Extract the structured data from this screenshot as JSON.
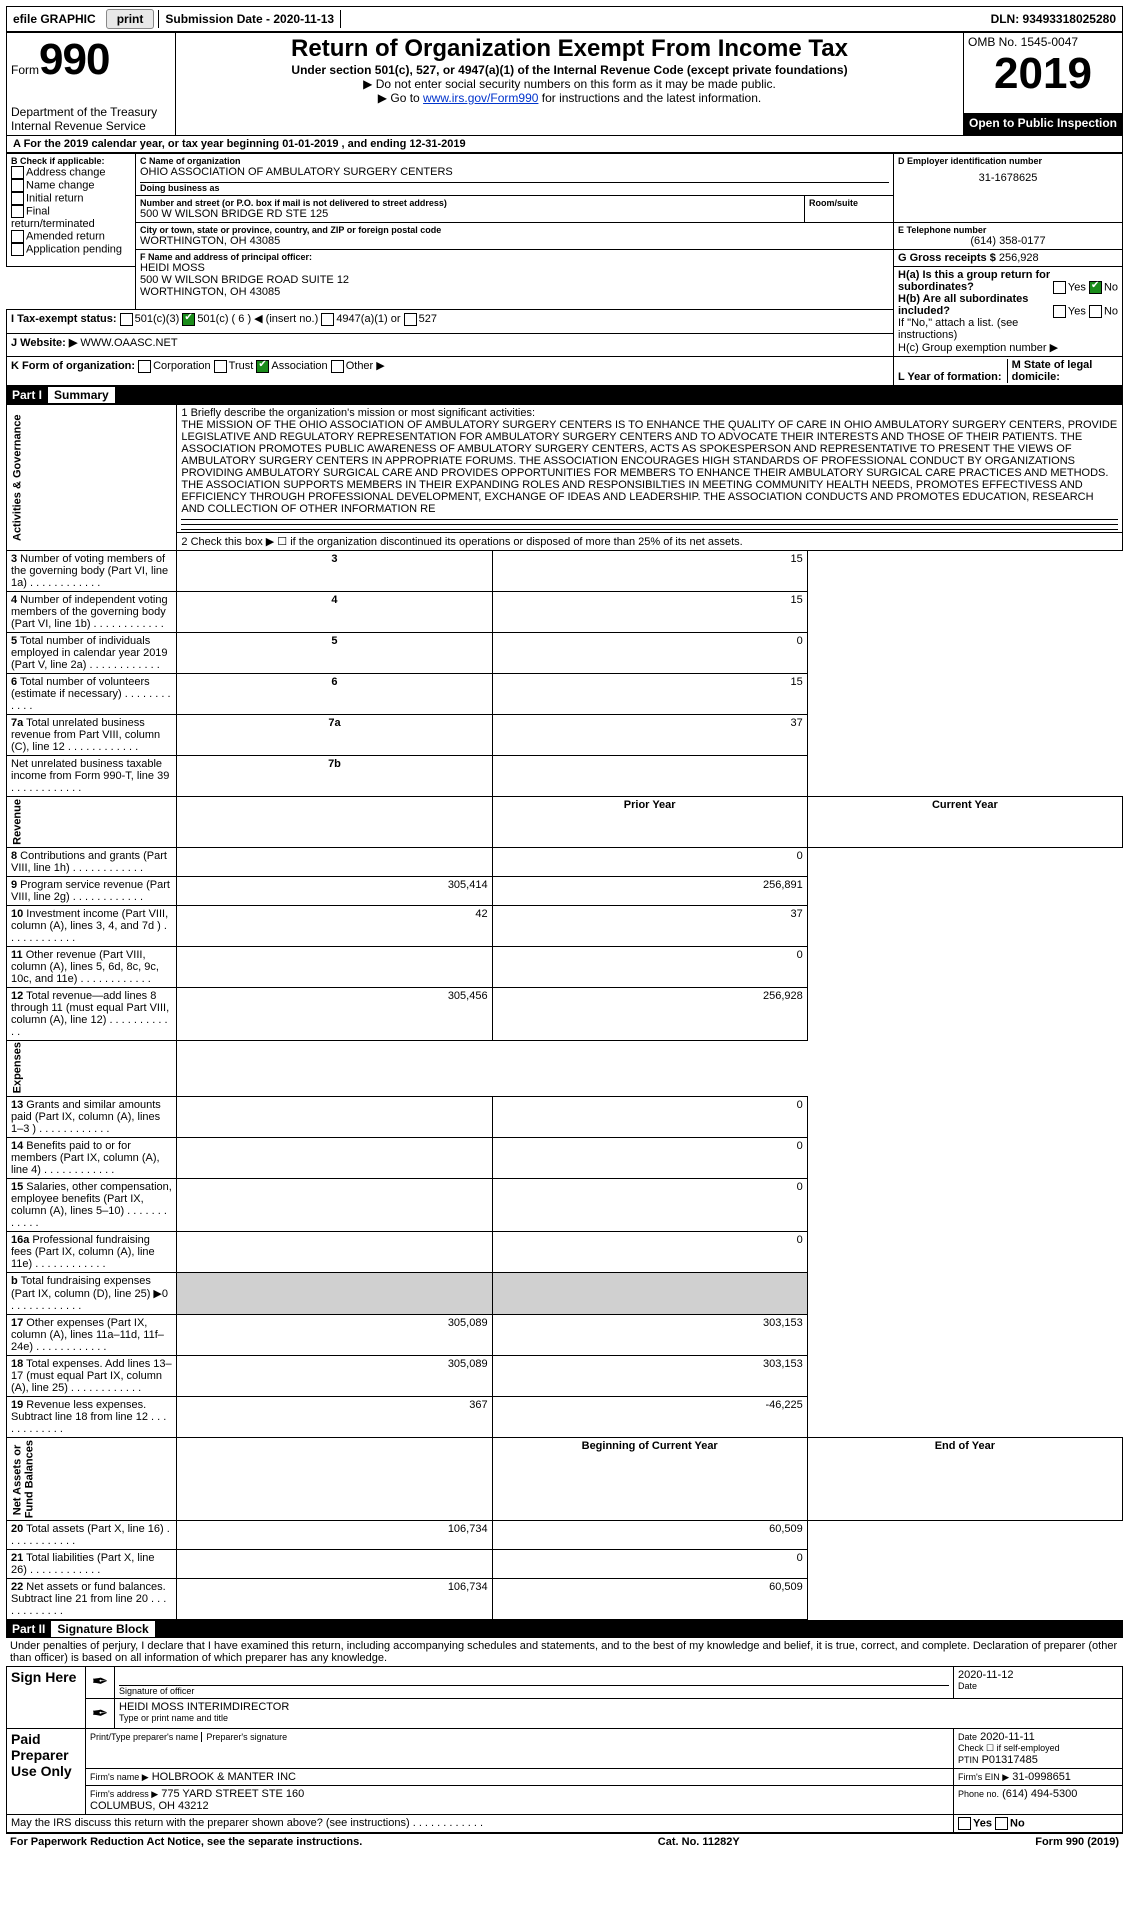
{
  "topbar": {
    "efile": "efile GRAPHIC",
    "print": "print",
    "submission_label": "Submission Date - 2020-11-13",
    "dln": "DLN: 93493318025280"
  },
  "header": {
    "form_prefix": "Form",
    "form_no": "990",
    "dept": "Department of the Treasury\nInternal Revenue Service",
    "title": "Return of Organization Exempt From Income Tax",
    "subtitle": "Under section 501(c), 527, or 4947(a)(1) of the Internal Revenue Code (except private foundations)",
    "note1": "▶ Do not enter social security numbers on this form as it may be made public.",
    "note2_pre": "▶ Go to ",
    "note2_link": "www.irs.gov/Form990",
    "note2_post": " for instructions and the latest information.",
    "omb": "OMB No. 1545-0047",
    "year": "2019",
    "open": "Open to Public Inspection"
  },
  "line_a": "A For the 2019 calendar year, or tax year beginning 01-01-2019  , and ending 12-31-2019",
  "boxB": {
    "label": "B Check if applicable:",
    "items": [
      "Address change",
      "Name change",
      "Initial return",
      "Final return/terminated",
      "Amended return",
      "Application pending"
    ]
  },
  "boxC": {
    "label": "C Name of organization",
    "name": "OHIO ASSOCIATION OF AMBULATORY SURGERY CENTERS",
    "dba_label": "Doing business as",
    "dba": "",
    "addr_label": "Number and street (or P.O. box if mail is not delivered to street address)",
    "addr": "500 W WILSON BRIDGE RD STE 125",
    "room_label": "Room/suite",
    "city_label": "City or town, state or province, country, and ZIP or foreign postal code",
    "city": "WORTHINGTON, OH  43085"
  },
  "boxD": {
    "label": "D Employer identification number",
    "val": "31-1678625"
  },
  "boxE": {
    "label": "E Telephone number",
    "val": "(614) 358-0177"
  },
  "boxG": {
    "label": "G Gross receipts $",
    "val": "256,928"
  },
  "boxF": {
    "label": "F Name and address of principal officer:",
    "name": "HEIDI MOSS",
    "addr": "500 W WILSON BRIDGE ROAD SUITE 12",
    "city": "WORTHINGTON, OH  43085"
  },
  "boxH": {
    "a": "H(a)  Is this a group return for subordinates?",
    "a_yes": "Yes",
    "a_no": "No",
    "b": "H(b)  Are all subordinates included?",
    "b_note": "If \"No,\" attach a list. (see instructions)",
    "c": "H(c)  Group exemption number ▶"
  },
  "boxI": {
    "label": "I  Tax-exempt status:",
    "o1": "501(c)(3)",
    "o2": "501(c) ( 6 ) ◀ (insert no.)",
    "o3": "4947(a)(1) or",
    "o4": "527"
  },
  "boxJ": {
    "label": "J  Website: ▶",
    "val": "WWW.OAASC.NET"
  },
  "boxK": {
    "label": "K Form of organization:",
    "o1": "Corporation",
    "o2": "Trust",
    "o3": "Association",
    "o4": "Other ▶"
  },
  "boxL": {
    "label": "L Year of formation:"
  },
  "boxM": {
    "label": "M State of legal domicile:"
  },
  "part1": {
    "header": "Part I",
    "title": "Summary",
    "mission_label": "1  Briefly describe the organization's mission or most significant activities:",
    "mission": "THE MISSION OF THE OHIO ASSOCIATION OF AMBULATORY SURGERY CENTERS IS TO ENHANCE THE QUALITY OF CARE IN OHIO AMBULATORY SURGERY CENTERS, PROVIDE LEGISLATIVE AND REGULATORY REPRESENTATION FOR AMBULATORY SURGERY CENTERS AND TO ADVOCATE THEIR INTERESTS AND THOSE OF THEIR PATIENTS. THE ASSOCIATION PROMOTES PUBLIC AWARENESS OF AMBULATORY SURGERY CENTERS, ACTS AS SPOKESPERSON AND REPRESENTATIVE TO PRESENT THE VIEWS OF AMBULATORY SURGERY CENTERS IN APPROPRIATE FORUMS. THE ASSOCIATION ENCOURAGES HIGH STANDARDS OF PROFESSIONAL CONDUCT BY ORGANIZATIONS PROVIDING AMBULATORY SURGICAL CARE AND PROVIDES OPPORTUNITIES FOR MEMBERS TO ENHANCE THEIR AMBULATORY SURGICAL CARE PRACTICES AND METHODS. THE ASSOCIATION SUPPORTS MEMBERS IN THEIR EXPANDING ROLES AND RESPONSIBILTIES IN MEETING COMMUNITY HEALTH NEEDS, PROMOTES EFFECTIVESS AND EFFICIENCY THROUGH PROFESSIONAL DEVELOPMENT, EXCHANGE OF IDEAS AND LEADERSHIP. THE ASSOCIATION CONDUCTS AND PROMOTES EDUCATION, RESEARCH AND COLLECTION OF OTHER INFORMATION RE",
    "line2": "2  Check this box ▶ ☐ if the organization discontinued its operations or disposed of more than 25% of its net assets.",
    "rows_act": [
      {
        "n": "3",
        "t": "Number of voting members of the governing body (Part VI, line 1a)",
        "b": "3",
        "v": "15"
      },
      {
        "n": "4",
        "t": "Number of independent voting members of the governing body (Part VI, line 1b)",
        "b": "4",
        "v": "15"
      },
      {
        "n": "5",
        "t": "Total number of individuals employed in calendar year 2019 (Part V, line 2a)",
        "b": "5",
        "v": "0"
      },
      {
        "n": "6",
        "t": "Total number of volunteers (estimate if necessary)",
        "b": "6",
        "v": "15"
      },
      {
        "n": "7a",
        "t": "Total unrelated business revenue from Part VIII, column (C), line 12",
        "b": "7a",
        "v": "37"
      },
      {
        "n": "",
        "t": "Net unrelated business taxable income from Form 990-T, line 39",
        "b": "7b",
        "v": ""
      }
    ],
    "prior_label": "Prior Year",
    "current_label": "Current Year",
    "rows_rev": [
      {
        "n": "8",
        "t": "Contributions and grants (Part VIII, line 1h)",
        "p": "",
        "c": "0"
      },
      {
        "n": "9",
        "t": "Program service revenue (Part VIII, line 2g)",
        "p": "305,414",
        "c": "256,891"
      },
      {
        "n": "10",
        "t": "Investment income (Part VIII, column (A), lines 3, 4, and 7d )",
        "p": "42",
        "c": "37"
      },
      {
        "n": "11",
        "t": "Other revenue (Part VIII, column (A), lines 5, 6d, 8c, 9c, 10c, and 11e)",
        "p": "",
        "c": "0"
      },
      {
        "n": "12",
        "t": "Total revenue—add lines 8 through 11 (must equal Part VIII, column (A), line 12)",
        "p": "305,456",
        "c": "256,928"
      }
    ],
    "rows_exp": [
      {
        "n": "13",
        "t": "Grants and similar amounts paid (Part IX, column (A), lines 1–3 )",
        "p": "",
        "c": "0"
      },
      {
        "n": "14",
        "t": "Benefits paid to or for members (Part IX, column (A), line 4)",
        "p": "",
        "c": "0"
      },
      {
        "n": "15",
        "t": "Salaries, other compensation, employee benefits (Part IX, column (A), lines 5–10)",
        "p": "",
        "c": "0"
      },
      {
        "n": "16a",
        "t": "Professional fundraising fees (Part IX, column (A), line 11e)",
        "p": "",
        "c": "0"
      },
      {
        "n": "b",
        "t": "Total fundraising expenses (Part IX, column (D), line 25) ▶0",
        "p": "SHADE",
        "c": "SHADE"
      },
      {
        "n": "17",
        "t": "Other expenses (Part IX, column (A), lines 11a–11d, 11f–24e)",
        "p": "305,089",
        "c": "303,153"
      },
      {
        "n": "18",
        "t": "Total expenses. Add lines 13–17 (must equal Part IX, column (A), line 25)",
        "p": "305,089",
        "c": "303,153"
      },
      {
        "n": "19",
        "t": "Revenue less expenses. Subtract line 18 from line 12",
        "p": "367",
        "c": "-46,225"
      }
    ],
    "bcy": "Beginning of Current Year",
    "eoy": "End of Year",
    "rows_net": [
      {
        "n": "20",
        "t": "Total assets (Part X, line 16)",
        "p": "106,734",
        "c": "60,509"
      },
      {
        "n": "21",
        "t": "Total liabilities (Part X, line 26)",
        "p": "",
        "c": "0"
      },
      {
        "n": "22",
        "t": "Net assets or fund balances. Subtract line 21 from line 20",
        "p": "106,734",
        "c": "60,509"
      }
    ],
    "vlabels": {
      "act": "Activities & Governance",
      "rev": "Revenue",
      "exp": "Expenses",
      "net": "Net Assets or\nFund Balances"
    }
  },
  "part2": {
    "header": "Part II",
    "title": "Signature Block",
    "decl": "Under penalties of perjury, I declare that I have examined this return, including accompanying schedules and statements, and to the best of my knowledge and belief, it is true, correct, and complete. Declaration of preparer (other than officer) is based on all information of which preparer has any knowledge.",
    "sign_here": "Sign Here",
    "sig_officer": "Signature of officer",
    "sig_date": "2020-11-12",
    "date_label": "Date",
    "sig_name": "HEIDI MOSS  INTERIMDIRECTOR",
    "sig_name_label": "Type or print name and title",
    "paid": "Paid Preparer Use Only",
    "prep_name_label": "Print/Type preparer's name",
    "prep_sig_label": "Preparer's signature",
    "prep_date_label": "Date",
    "prep_date": "2020-11-11",
    "self_emp": "Check ☐ if self-employed",
    "ptin_label": "PTIN",
    "ptin": "P01317485",
    "firm_name_label": "Firm's name  ▶",
    "firm_name": "HOLBROOK & MANTER INC",
    "firm_ein_label": "Firm's EIN ▶",
    "firm_ein": "31-0998651",
    "firm_addr_label": "Firm's address ▶",
    "firm_addr": "775 YARD STREET STE 160",
    "firm_city": "COLUMBUS, OH  43212",
    "phone_label": "Phone no.",
    "phone": "(614) 494-5300",
    "may_irs": "May the IRS discuss this return with the preparer shown above? (see instructions)",
    "yes": "Yes",
    "no": "No"
  },
  "footer": {
    "pra": "For Paperwork Reduction Act Notice, see the separate instructions.",
    "cat": "Cat. No. 11282Y",
    "form": "Form 990 (2019)"
  }
}
